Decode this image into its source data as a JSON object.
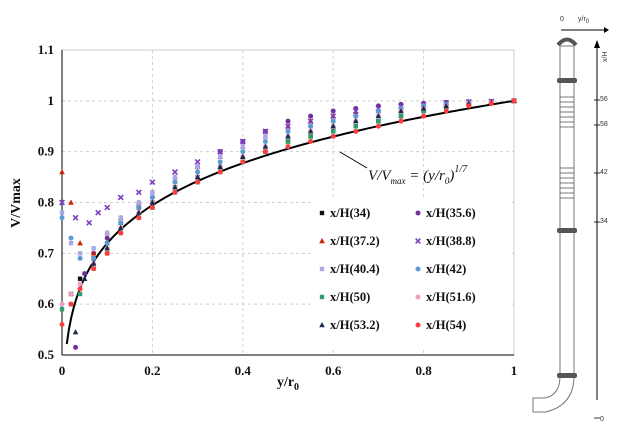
{
  "chart_data": {
    "type": "scatter",
    "title": "",
    "xlabel_main": "y/r",
    "xlabel_sub": "0",
    "ylabel": "V/Vmax",
    "xlim": [
      0,
      1
    ],
    "ylim": [
      0.5,
      1.1
    ],
    "x_ticks": [
      "0",
      "0.2",
      "0.4",
      "0.6",
      "0.8",
      "1"
    ],
    "y_ticks": [
      "0.5",
      "0.6",
      "0.7",
      "0.8",
      "0.9",
      "1",
      "1.1"
    ],
    "grid": true,
    "legend_position": "bottom-right",
    "annotation": {
      "lhs_main": "V",
      "lhs_sep": "/",
      "lhs_v2": "V",
      "lhs_v2_sub": "max",
      "eq": " = (",
      "rhs_y": "y",
      "rhs_r": "/r",
      "rhs_r_sub": "0",
      "rhs_close": ")",
      "exponent": "1/7"
    },
    "power_law_curve": {
      "exponent_value": 0.142857
    },
    "series": [
      {
        "name": "x/H(34)",
        "color": "#111111",
        "marker": "square",
        "points": [
          [
            0.02,
            0.62
          ],
          [
            0.04,
            0.65
          ],
          [
            0.07,
            0.69
          ],
          [
            0.1,
            0.72
          ],
          [
            0.13,
            0.76
          ],
          [
            0.17,
            0.79
          ],
          [
            0.2,
            0.8
          ],
          [
            0.25,
            0.83
          ],
          [
            0.3,
            0.85
          ],
          [
            0.35,
            0.87
          ],
          [
            0.4,
            0.88
          ],
          [
            0.45,
            0.9
          ],
          [
            0.5,
            0.92
          ],
          [
            0.55,
            0.93
          ],
          [
            0.6,
            0.94
          ],
          [
            0.65,
            0.95
          ],
          [
            0.7,
            0.96
          ],
          [
            0.75,
            0.97
          ],
          [
            0.8,
            0.98
          ],
          [
            0.85,
            0.985
          ],
          [
            0.9,
            0.99
          ],
          [
            0.95,
            0.995
          ],
          [
            1.0,
            1.0
          ]
        ]
      },
      {
        "name": "x/H(35.6)",
        "color": "#7030a0",
        "marker": "circle",
        "points": [
          [
            0.03,
            0.515
          ],
          [
            0.05,
            0.66
          ],
          [
            0.07,
            0.7
          ],
          [
            0.1,
            0.73
          ],
          [
            0.13,
            0.76
          ],
          [
            0.17,
            0.79
          ],
          [
            0.2,
            0.81
          ],
          [
            0.25,
            0.84
          ],
          [
            0.3,
            0.87
          ],
          [
            0.35,
            0.9
          ],
          [
            0.4,
            0.92
          ],
          [
            0.45,
            0.94
          ],
          [
            0.5,
            0.96
          ],
          [
            0.55,
            0.97
          ],
          [
            0.6,
            0.98
          ],
          [
            0.65,
            0.985
          ],
          [
            0.7,
            0.99
          ],
          [
            0.75,
            0.993
          ],
          [
            0.8,
            0.995
          ],
          [
            0.85,
            0.997
          ],
          [
            0.9,
            0.998
          ],
          [
            0.95,
            0.999
          ],
          [
            1.0,
            1.0
          ]
        ]
      },
      {
        "name": "x/H(37.2)",
        "color": "#cc2200",
        "marker": "triangle",
        "points": [
          [
            0.0,
            0.86
          ],
          [
            0.02,
            0.8
          ],
          [
            0.04,
            0.72
          ],
          [
            0.07,
            0.7
          ],
          [
            0.1,
            0.74
          ],
          [
            0.13,
            0.77
          ],
          [
            0.17,
            0.8
          ],
          [
            0.2,
            0.82
          ],
          [
            0.25,
            0.85
          ],
          [
            0.3,
            0.87
          ],
          [
            0.35,
            0.89
          ],
          [
            0.4,
            0.91
          ],
          [
            0.45,
            0.93
          ],
          [
            0.5,
            0.95
          ],
          [
            0.55,
            0.96
          ],
          [
            0.6,
            0.97
          ],
          [
            0.65,
            0.975
          ],
          [
            0.7,
            0.98
          ],
          [
            0.75,
            0.985
          ],
          [
            0.8,
            0.99
          ],
          [
            0.85,
            0.993
          ],
          [
            0.9,
            0.996
          ],
          [
            0.95,
            0.998
          ],
          [
            1.0,
            1.0
          ]
        ]
      },
      {
        "name": "x/H(38.8)",
        "color": "#7b3fbf",
        "marker": "cross",
        "points": [
          [
            0.0,
            0.8
          ],
          [
            0.03,
            0.77
          ],
          [
            0.06,
            0.76
          ],
          [
            0.08,
            0.78
          ],
          [
            0.1,
            0.79
          ],
          [
            0.13,
            0.81
          ],
          [
            0.17,
            0.82
          ],
          [
            0.2,
            0.84
          ],
          [
            0.25,
            0.86
          ],
          [
            0.3,
            0.88
          ],
          [
            0.35,
            0.9
          ],
          [
            0.4,
            0.92
          ],
          [
            0.45,
            0.94
          ],
          [
            0.5,
            0.95
          ],
          [
            0.55,
            0.96
          ],
          [
            0.6,
            0.97
          ],
          [
            0.65,
            0.98
          ],
          [
            0.7,
            0.985
          ],
          [
            0.75,
            0.99
          ],
          [
            0.8,
            0.993
          ],
          [
            0.85,
            0.996
          ],
          [
            0.9,
            0.998
          ],
          [
            0.95,
            0.999
          ],
          [
            1.0,
            1.0
          ]
        ]
      },
      {
        "name": "x/H(40.4)",
        "color": "#a8a8e8",
        "marker": "square",
        "points": [
          [
            0.0,
            0.78
          ],
          [
            0.02,
            0.72
          ],
          [
            0.04,
            0.7
          ],
          [
            0.07,
            0.71
          ],
          [
            0.1,
            0.74
          ],
          [
            0.13,
            0.77
          ],
          [
            0.17,
            0.8
          ],
          [
            0.2,
            0.82
          ],
          [
            0.25,
            0.85
          ],
          [
            0.3,
            0.87
          ],
          [
            0.35,
            0.89
          ],
          [
            0.4,
            0.91
          ],
          [
            0.45,
            0.93
          ],
          [
            0.5,
            0.94
          ],
          [
            0.55,
            0.95
          ],
          [
            0.6,
            0.96
          ],
          [
            0.65,
            0.97
          ],
          [
            0.7,
            0.98
          ],
          [
            0.75,
            0.985
          ],
          [
            0.8,
            0.99
          ],
          [
            0.85,
            0.993
          ],
          [
            0.9,
            0.996
          ],
          [
            0.95,
            0.998
          ],
          [
            1.0,
            1.0
          ]
        ]
      },
      {
        "name": "x/H(42)",
        "color": "#5b9bd5",
        "marker": "circle",
        "points": [
          [
            0.0,
            0.77
          ],
          [
            0.02,
            0.73
          ],
          [
            0.04,
            0.69
          ],
          [
            0.07,
            0.69
          ],
          [
            0.1,
            0.72
          ],
          [
            0.13,
            0.76
          ],
          [
            0.17,
            0.79
          ],
          [
            0.2,
            0.81
          ],
          [
            0.25,
            0.84
          ],
          [
            0.3,
            0.86
          ],
          [
            0.35,
            0.88
          ],
          [
            0.4,
            0.9
          ],
          [
            0.45,
            0.92
          ],
          [
            0.5,
            0.94
          ],
          [
            0.55,
            0.95
          ],
          [
            0.6,
            0.96
          ],
          [
            0.65,
            0.97
          ],
          [
            0.7,
            0.98
          ],
          [
            0.75,
            0.985
          ],
          [
            0.8,
            0.99
          ],
          [
            0.85,
            0.993
          ],
          [
            0.9,
            0.996
          ],
          [
            0.95,
            0.998
          ],
          [
            1.0,
            1.0
          ]
        ]
      },
      {
        "name": "x/H(50)",
        "color": "#2e9e6a",
        "marker": "square",
        "points": [
          [
            0.0,
            0.59
          ],
          [
            0.02,
            0.6
          ],
          [
            0.04,
            0.62
          ],
          [
            0.07,
            0.67
          ],
          [
            0.1,
            0.7
          ],
          [
            0.13,
            0.74
          ],
          [
            0.17,
            0.77
          ],
          [
            0.2,
            0.79
          ],
          [
            0.25,
            0.82
          ],
          [
            0.3,
            0.84
          ],
          [
            0.35,
            0.86
          ],
          [
            0.4,
            0.88
          ],
          [
            0.45,
            0.9
          ],
          [
            0.5,
            0.92
          ],
          [
            0.55,
            0.93
          ],
          [
            0.6,
            0.94
          ],
          [
            0.65,
            0.95
          ],
          [
            0.7,
            0.96
          ],
          [
            0.75,
            0.97
          ],
          [
            0.8,
            0.98
          ],
          [
            0.85,
            0.985
          ],
          [
            0.9,
            0.99
          ],
          [
            0.95,
            0.995
          ],
          [
            1.0,
            1.0
          ]
        ]
      },
      {
        "name": "x/H(51.6)",
        "color": "#e8a0c8",
        "marker": "circle",
        "points": [
          [
            0.0,
            0.6
          ],
          [
            0.02,
            0.62
          ],
          [
            0.04,
            0.64
          ],
          [
            0.07,
            0.68
          ],
          [
            0.1,
            0.71
          ],
          [
            0.13,
            0.75
          ],
          [
            0.17,
            0.78
          ],
          [
            0.2,
            0.8
          ],
          [
            0.25,
            0.83
          ],
          [
            0.3,
            0.85
          ],
          [
            0.35,
            0.87
          ],
          [
            0.4,
            0.89
          ],
          [
            0.45,
            0.91
          ],
          [
            0.5,
            0.93
          ],
          [
            0.55,
            0.94
          ],
          [
            0.6,
            0.95
          ],
          [
            0.65,
            0.96
          ],
          [
            0.7,
            0.97
          ],
          [
            0.75,
            0.98
          ],
          [
            0.8,
            0.985
          ],
          [
            0.85,
            0.99
          ],
          [
            0.9,
            0.995
          ],
          [
            0.95,
            0.998
          ],
          [
            1.0,
            1.0
          ]
        ]
      },
      {
        "name": "x/H(53.2)",
        "color": "#1a2a4a",
        "marker": "triangle",
        "points": [
          [
            0.03,
            0.545
          ],
          [
            0.05,
            0.65
          ],
          [
            0.07,
            0.68
          ],
          [
            0.1,
            0.71
          ],
          [
            0.13,
            0.75
          ],
          [
            0.17,
            0.78
          ],
          [
            0.2,
            0.8
          ],
          [
            0.25,
            0.83
          ],
          [
            0.3,
            0.85
          ],
          [
            0.35,
            0.87
          ],
          [
            0.4,
            0.89
          ],
          [
            0.45,
            0.91
          ],
          [
            0.5,
            0.93
          ],
          [
            0.55,
            0.94
          ],
          [
            0.6,
            0.95
          ],
          [
            0.65,
            0.96
          ],
          [
            0.7,
            0.97
          ],
          [
            0.75,
            0.98
          ],
          [
            0.8,
            0.985
          ],
          [
            0.85,
            0.99
          ],
          [
            0.9,
            0.995
          ],
          [
            0.95,
            0.998
          ],
          [
            1.0,
            1.0
          ]
        ]
      },
      {
        "name": "x/H(54)",
        "color": "#ff3b3b",
        "marker": "circle",
        "points": [
          [
            0.0,
            0.56
          ],
          [
            0.02,
            0.6
          ],
          [
            0.04,
            0.63
          ],
          [
            0.07,
            0.67
          ],
          [
            0.1,
            0.7
          ],
          [
            0.13,
            0.74
          ],
          [
            0.17,
            0.77
          ],
          [
            0.2,
            0.79
          ],
          [
            0.25,
            0.82
          ],
          [
            0.3,
            0.84
          ],
          [
            0.35,
            0.86
          ],
          [
            0.4,
            0.88
          ],
          [
            0.45,
            0.9
          ],
          [
            0.5,
            0.91
          ],
          [
            0.55,
            0.92
          ],
          [
            0.6,
            0.93
          ],
          [
            0.65,
            0.94
          ],
          [
            0.7,
            0.95
          ],
          [
            0.75,
            0.96
          ],
          [
            0.8,
            0.97
          ],
          [
            0.85,
            0.98
          ],
          [
            0.9,
            0.99
          ],
          [
            0.95,
            0.995
          ],
          [
            1.0,
            1.0
          ]
        ]
      }
    ]
  },
  "pipe_diagram": {
    "x_label": "y/r",
    "x_label_sub": "0",
    "origin_label": "0",
    "vertical_label": "x/H",
    "scale_labels": [
      "56",
      "58",
      "42",
      "34",
      "0"
    ]
  }
}
